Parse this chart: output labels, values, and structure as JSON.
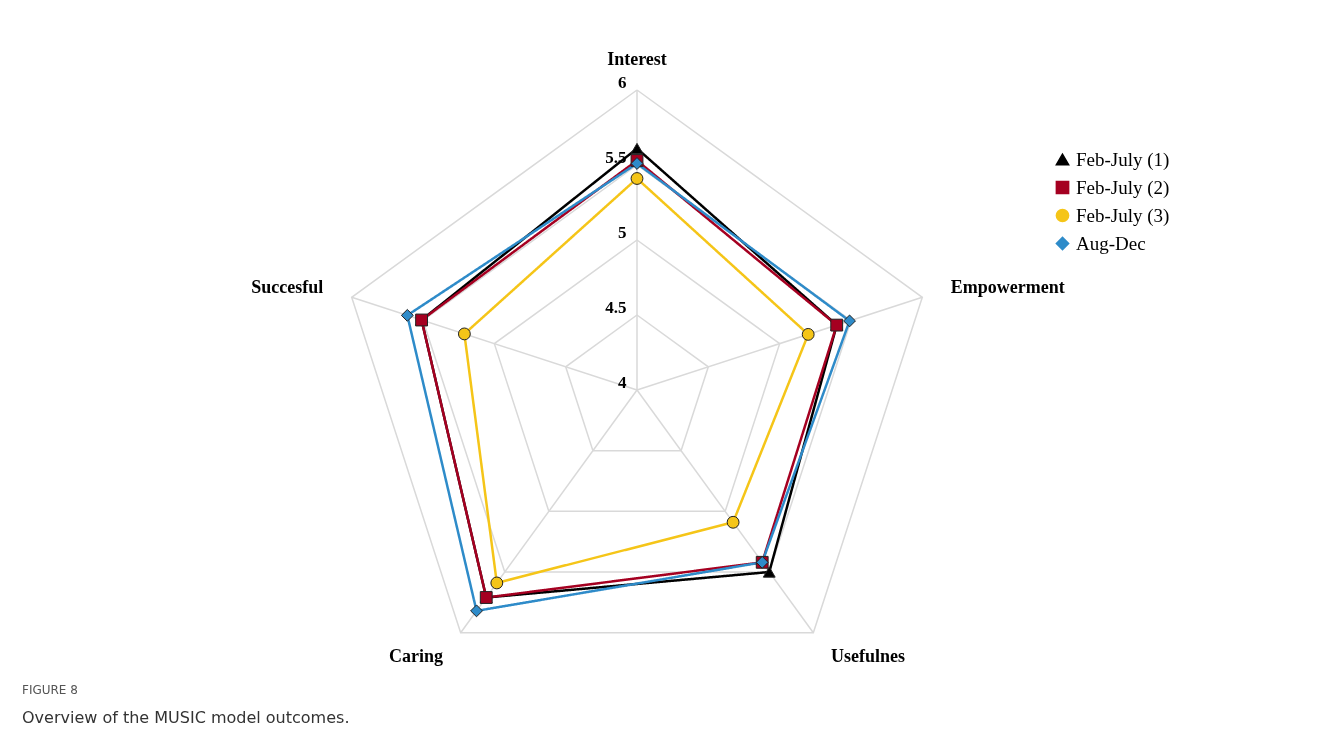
{
  "chart_data": {
    "type": "radar",
    "categories": [
      "Interest",
      "Empowerment",
      "Usefulnes",
      "Caring",
      "Succesful"
    ],
    "ylim": [
      4,
      6
    ],
    "yticks": [
      4,
      4.5,
      5,
      5.5,
      6
    ],
    "grid": true,
    "legend": "top right",
    "line_style": "solid",
    "series": [
      {
        "name": "Feb-July (1)",
        "color": "#000000",
        "marker": "triangle",
        "values": [
          5.61,
          5.4,
          5.5,
          5.71,
          5.51
        ]
      },
      {
        "name": "Feb-July (2)",
        "color": "#a50021",
        "marker": "square",
        "values": [
          5.53,
          5.4,
          5.42,
          5.71,
          5.51
        ]
      },
      {
        "name": "Feb-July (3)",
        "color": "#f5c518",
        "marker": "circle",
        "values": [
          5.41,
          5.2,
          5.09,
          5.59,
          5.21
        ]
      },
      {
        "name": "Aug-Dec",
        "color": "#2e8bc9",
        "marker": "diamond",
        "values": [
          5.51,
          5.49,
          5.42,
          5.82,
          5.61
        ]
      }
    ],
    "annotations": [
      "FIGURE 8",
      "Overview of the MUSIC model outcomes."
    ]
  }
}
